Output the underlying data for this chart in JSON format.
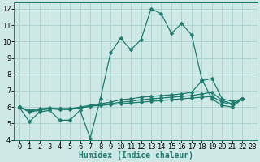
{
  "xlabel": "Humidex (Indice chaleur)",
  "bg_color": "#cde8e5",
  "grid_color": "#aacfcc",
  "line_color": "#1e7b6e",
  "xlim": [
    -0.5,
    23.5
  ],
  "ylim": [
    4,
    12.4
  ],
  "xticks": [
    0,
    1,
    2,
    3,
    4,
    5,
    6,
    7,
    8,
    9,
    10,
    11,
    12,
    13,
    14,
    15,
    16,
    17,
    18,
    19,
    20,
    21,
    22,
    23
  ],
  "yticks": [
    4,
    5,
    6,
    7,
    8,
    9,
    10,
    11,
    12
  ],
  "series": [
    {
      "x": [
        0,
        1,
        2,
        3,
        4,
        5,
        6,
        7,
        8,
        9,
        10,
        11,
        12,
        13,
        14,
        15,
        16,
        17,
        18,
        19,
        20,
        21,
        22
      ],
      "y": [
        6.0,
        5.1,
        5.7,
        5.8,
        5.2,
        5.2,
        5.8,
        4.1,
        6.5,
        9.3,
        10.2,
        9.5,
        10.1,
        12.0,
        11.7,
        10.5,
        11.1,
        10.4,
        7.7,
        6.5,
        6.1,
        6.0,
        6.5
      ]
    },
    {
      "x": [
        0,
        1,
        2,
        3,
        4,
        5,
        6,
        7,
        8,
        9,
        10,
        11,
        12,
        13,
        14,
        15,
        16,
        17,
        18,
        19,
        20,
        21,
        22
      ],
      "y": [
        6.0,
        5.7,
        5.8,
        5.9,
        5.9,
        5.9,
        6.0,
        6.1,
        6.2,
        6.3,
        6.45,
        6.5,
        6.6,
        6.65,
        6.7,
        6.75,
        6.8,
        6.9,
        7.6,
        7.75,
        6.5,
        6.35,
        6.5
      ]
    },
    {
      "x": [
        0,
        1,
        2,
        3,
        4,
        5,
        6,
        7,
        8,
        9,
        10,
        11,
        12,
        13,
        14,
        15,
        16,
        17,
        18,
        19,
        20,
        21,
        22
      ],
      "y": [
        6.0,
        5.75,
        5.85,
        5.9,
        5.85,
        5.85,
        5.95,
        6.05,
        6.15,
        6.2,
        6.3,
        6.35,
        6.45,
        6.5,
        6.55,
        6.6,
        6.65,
        6.7,
        6.8,
        6.9,
        6.4,
        6.2,
        6.5
      ]
    },
    {
      "x": [
        0,
        1,
        2,
        3,
        4,
        5,
        6,
        7,
        8,
        9,
        10,
        11,
        12,
        13,
        14,
        15,
        16,
        17,
        18,
        19,
        20,
        21,
        22
      ],
      "y": [
        6.0,
        5.8,
        5.9,
        5.95,
        5.9,
        5.9,
        5.95,
        6.05,
        6.1,
        6.15,
        6.2,
        6.25,
        6.3,
        6.35,
        6.4,
        6.45,
        6.5,
        6.55,
        6.6,
        6.65,
        6.3,
        6.15,
        6.5
      ]
    }
  ],
  "marker": "D",
  "marker_size": 2.5,
  "line_width": 0.9,
  "xlabel_fontsize": 7,
  "tick_fontsize": 6
}
